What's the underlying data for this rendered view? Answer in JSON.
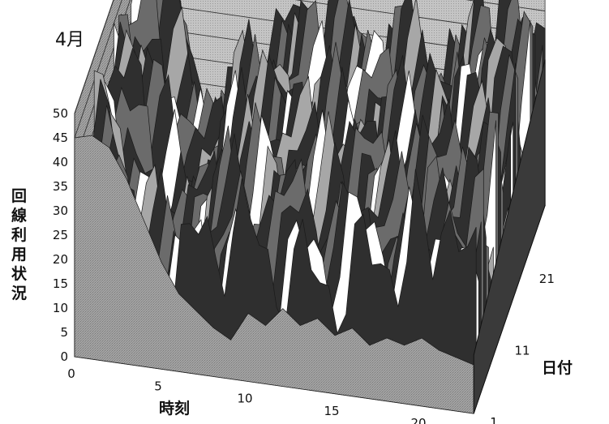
{
  "chart_data": {
    "type": "surface-3d",
    "title": "4月",
    "zlabel": "回線利用状況",
    "xlabel": "時刻",
    "ylabel": "日付",
    "z_ticks": [
      "0",
      "5",
      "10",
      "15",
      "20",
      "25",
      "30",
      "35",
      "40",
      "45",
      "50"
    ],
    "z_range": [
      0,
      50
    ],
    "x_ticks": [
      "0",
      "5",
      "10",
      "15",
      "20"
    ],
    "x_range": [
      0,
      23
    ],
    "y_ticks": [
      "1",
      "11",
      "21"
    ],
    "y_range": [
      1,
      30
    ],
    "grid": true,
    "front_day_profile": {
      "day": 1,
      "hours": [
        0,
        1,
        2,
        3,
        4,
        5,
        6,
        7,
        8,
        9,
        10,
        11,
        12,
        13,
        14,
        15,
        16,
        17,
        18,
        19,
        20,
        21,
        22,
        23
      ],
      "values": [
        45,
        46,
        44,
        38,
        30,
        22,
        16,
        13,
        10,
        8,
        14,
        12,
        16,
        13,
        15,
        12,
        14,
        11,
        13,
        12,
        14,
        12,
        11,
        10
      ]
    },
    "colors": {
      "surface_dark": "#2f2f2f",
      "surface_mid": "#6b6b6b",
      "surface_light": "#a7a7a7",
      "highlight": "#ffffff",
      "walls": "#9c9c9c",
      "floor": "#b9b9b9"
    }
  }
}
